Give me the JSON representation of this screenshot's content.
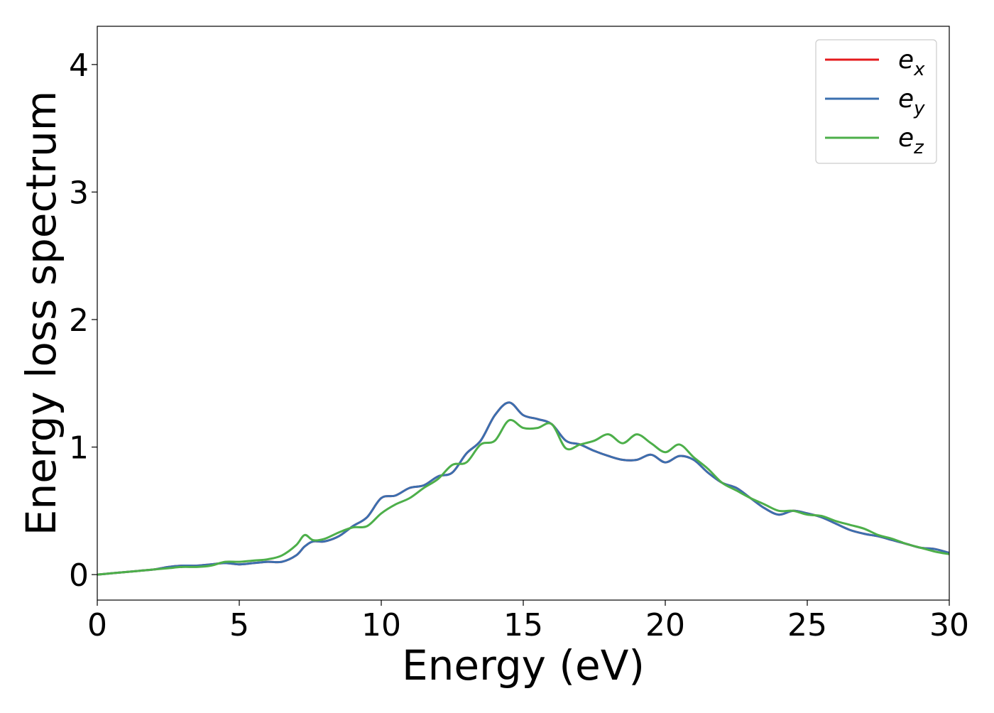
{
  "chart_data": {
    "type": "line",
    "title": "",
    "xlabel": "Energy (eV)",
    "ylabel": "Energy loss spectrum",
    "xlim": [
      0,
      30
    ],
    "ylim": [
      -0.2,
      4.3
    ],
    "xticks": [
      0,
      5,
      10,
      15,
      20,
      25,
      30
    ],
    "yticks": [
      0,
      1,
      2,
      3,
      4
    ],
    "grid": false,
    "legend_position": "top-right",
    "series": [
      {
        "name": "e_x",
        "label_base": "e",
        "label_sub": "x",
        "color": "#e41a1c",
        "x": [
          0,
          0.5,
          1,
          1.5,
          2,
          2.5,
          3,
          3.5,
          4,
          4.5,
          5,
          5.5,
          6,
          6.5,
          7,
          7.3,
          7.6,
          8,
          8.5,
          9,
          9.5,
          10,
          10.5,
          11,
          11.5,
          12,
          12.5,
          13,
          13.5,
          14,
          14.5,
          15,
          15.5,
          16,
          16.5,
          17,
          17.5,
          18,
          18.5,
          19,
          19.5,
          20,
          20.5,
          21,
          21.5,
          22,
          22.5,
          23,
          23.5,
          24,
          24.5,
          25,
          25.5,
          26,
          26.5,
          27,
          27.5,
          28,
          28.5,
          29,
          29.5,
          30
        ],
        "y": [
          0.0,
          0.01,
          0.02,
          0.03,
          0.04,
          0.06,
          0.07,
          0.07,
          0.08,
          0.09,
          0.08,
          0.09,
          0.1,
          0.1,
          0.15,
          0.22,
          0.26,
          0.26,
          0.3,
          0.38,
          0.45,
          0.6,
          0.62,
          0.68,
          0.7,
          0.77,
          0.8,
          0.95,
          1.05,
          1.25,
          1.35,
          1.25,
          1.22,
          1.18,
          1.05,
          1.02,
          0.97,
          0.93,
          0.9,
          0.9,
          0.94,
          0.88,
          0.93,
          0.9,
          0.8,
          0.72,
          0.68,
          0.6,
          0.52,
          0.47,
          0.5,
          0.48,
          0.45,
          0.4,
          0.35,
          0.32,
          0.3,
          0.27,
          0.24,
          0.21,
          0.2,
          0.17
        ]
      },
      {
        "name": "e_y",
        "label_base": "e",
        "label_sub": "y",
        "color": "#3b6faf",
        "x": [
          0,
          0.5,
          1,
          1.5,
          2,
          2.5,
          3,
          3.5,
          4,
          4.5,
          5,
          5.5,
          6,
          6.5,
          7,
          7.3,
          7.6,
          8,
          8.5,
          9,
          9.5,
          10,
          10.5,
          11,
          11.5,
          12,
          12.5,
          13,
          13.5,
          14,
          14.5,
          15,
          15.5,
          16,
          16.5,
          17,
          17.5,
          18,
          18.5,
          19,
          19.5,
          20,
          20.5,
          21,
          21.5,
          22,
          22.5,
          23,
          23.5,
          24,
          24.5,
          25,
          25.5,
          26,
          26.5,
          27,
          27.5,
          28,
          28.5,
          29,
          29.5,
          30
        ],
        "y": [
          0.0,
          0.01,
          0.02,
          0.03,
          0.04,
          0.06,
          0.07,
          0.07,
          0.08,
          0.09,
          0.08,
          0.09,
          0.1,
          0.1,
          0.15,
          0.22,
          0.26,
          0.26,
          0.3,
          0.38,
          0.45,
          0.6,
          0.62,
          0.68,
          0.7,
          0.77,
          0.8,
          0.95,
          1.05,
          1.25,
          1.35,
          1.25,
          1.22,
          1.18,
          1.05,
          1.02,
          0.97,
          0.93,
          0.9,
          0.9,
          0.94,
          0.88,
          0.93,
          0.9,
          0.8,
          0.72,
          0.68,
          0.6,
          0.52,
          0.47,
          0.5,
          0.48,
          0.45,
          0.4,
          0.35,
          0.32,
          0.3,
          0.27,
          0.24,
          0.21,
          0.2,
          0.17
        ]
      },
      {
        "name": "e_z",
        "label_base": "e",
        "label_sub": "z",
        "color": "#4daf4a",
        "x": [
          0,
          0.5,
          1,
          1.5,
          2,
          2.5,
          3,
          3.5,
          4,
          4.5,
          5,
          5.5,
          6,
          6.5,
          7,
          7.3,
          7.6,
          8,
          8.5,
          9,
          9.5,
          10,
          10.5,
          11,
          11.5,
          12,
          12.5,
          13,
          13.5,
          14,
          14.5,
          15,
          15.5,
          16,
          16.5,
          17,
          17.5,
          18,
          18.5,
          19,
          19.5,
          20,
          20.5,
          21,
          21.5,
          22,
          22.5,
          23,
          23.5,
          24,
          24.5,
          25,
          25.5,
          26,
          26.5,
          27,
          27.5,
          28,
          28.5,
          29,
          29.5,
          30
        ],
        "y": [
          0.0,
          0.01,
          0.02,
          0.03,
          0.04,
          0.05,
          0.06,
          0.06,
          0.07,
          0.1,
          0.1,
          0.11,
          0.12,
          0.15,
          0.23,
          0.31,
          0.27,
          0.28,
          0.33,
          0.37,
          0.38,
          0.48,
          0.55,
          0.6,
          0.68,
          0.75,
          0.86,
          0.88,
          1.02,
          1.05,
          1.21,
          1.15,
          1.15,
          1.18,
          0.99,
          1.02,
          1.05,
          1.1,
          1.03,
          1.1,
          1.03,
          0.96,
          1.02,
          0.92,
          0.83,
          0.72,
          0.66,
          0.6,
          0.55,
          0.5,
          0.5,
          0.47,
          0.46,
          0.42,
          0.39,
          0.36,
          0.31,
          0.28,
          0.24,
          0.21,
          0.18,
          0.16
        ]
      }
    ]
  }
}
